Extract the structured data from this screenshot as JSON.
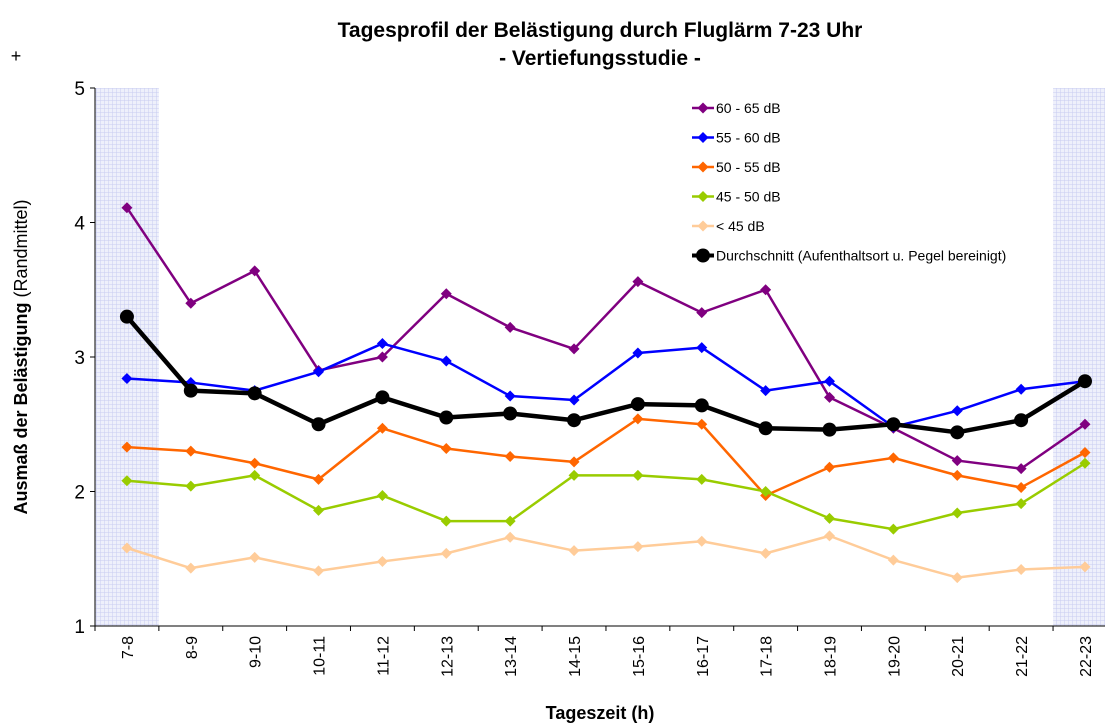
{
  "chart_data": {
    "type": "line",
    "title": "Tagesprofil der Belästigung durch Fluglärm 7-23 Uhr",
    "subtitle": "- Vertiefungsstudie -",
    "corner_mark": "+",
    "xlabel": "Tageszeit (h)",
    "ylabel": "Ausmaß der Belästigung",
    "ylabel_note": "(Randmittel)",
    "categories": [
      "7-8",
      "8-9",
      "9-10",
      "10-11",
      "11-12",
      "12-13",
      "13-14",
      "14-15",
      "15-16",
      "16-17",
      "17-18",
      "18-19",
      "19-20",
      "20-21",
      "21-22",
      "22-23"
    ],
    "ylim": [
      1,
      5
    ],
    "yticks": [
      1,
      2,
      3,
      4,
      5
    ],
    "legend": "upper right",
    "series": [
      {
        "name": "60 - 65 dB",
        "color": "#800080",
        "marker": "diamond",
        "values": [
          4.11,
          3.4,
          3.64,
          2.9,
          3.0,
          3.47,
          3.22,
          3.06,
          3.56,
          3.33,
          3.5,
          2.7,
          2.47,
          2.23,
          2.17,
          2.5
        ]
      },
      {
        "name": "55 - 60 dB",
        "color": "#0000ff",
        "marker": "diamond",
        "values": [
          2.84,
          2.81,
          2.75,
          2.89,
          3.1,
          2.97,
          2.71,
          2.68,
          3.03,
          3.07,
          2.75,
          2.82,
          2.48,
          2.6,
          2.76,
          2.82
        ]
      },
      {
        "name": "50 - 55 dB",
        "color": "#ff6600",
        "marker": "diamond",
        "values": [
          2.33,
          2.3,
          2.21,
          2.09,
          2.47,
          2.32,
          2.26,
          2.22,
          2.54,
          2.5,
          1.97,
          2.18,
          2.25,
          2.12,
          2.03,
          2.29
        ]
      },
      {
        "name": "45 - 50 dB",
        "color": "#99cc00",
        "marker": "diamond",
        "values": [
          2.08,
          2.04,
          2.12,
          1.86,
          1.97,
          1.78,
          1.78,
          2.12,
          2.12,
          2.09,
          2.0,
          1.8,
          1.72,
          1.84,
          1.91,
          2.21
        ]
      },
      {
        "name": "< 45 dB",
        "color": "#ffcc99",
        "marker": "diamond",
        "values": [
          1.58,
          1.43,
          1.51,
          1.41,
          1.48,
          1.54,
          1.66,
          1.56,
          1.59,
          1.63,
          1.54,
          1.67,
          1.49,
          1.36,
          1.42,
          1.44
        ]
      },
      {
        "name": "Durchschnitt (Aufenthaltsort u. Pegel bereinigt)",
        "color": "#000000",
        "marker": "circle",
        "values": [
          3.3,
          2.75,
          2.73,
          2.5,
          2.7,
          2.55,
          2.58,
          2.53,
          2.65,
          2.64,
          2.47,
          2.46,
          2.5,
          2.44,
          2.53,
          2.82
        ]
      }
    ]
  }
}
